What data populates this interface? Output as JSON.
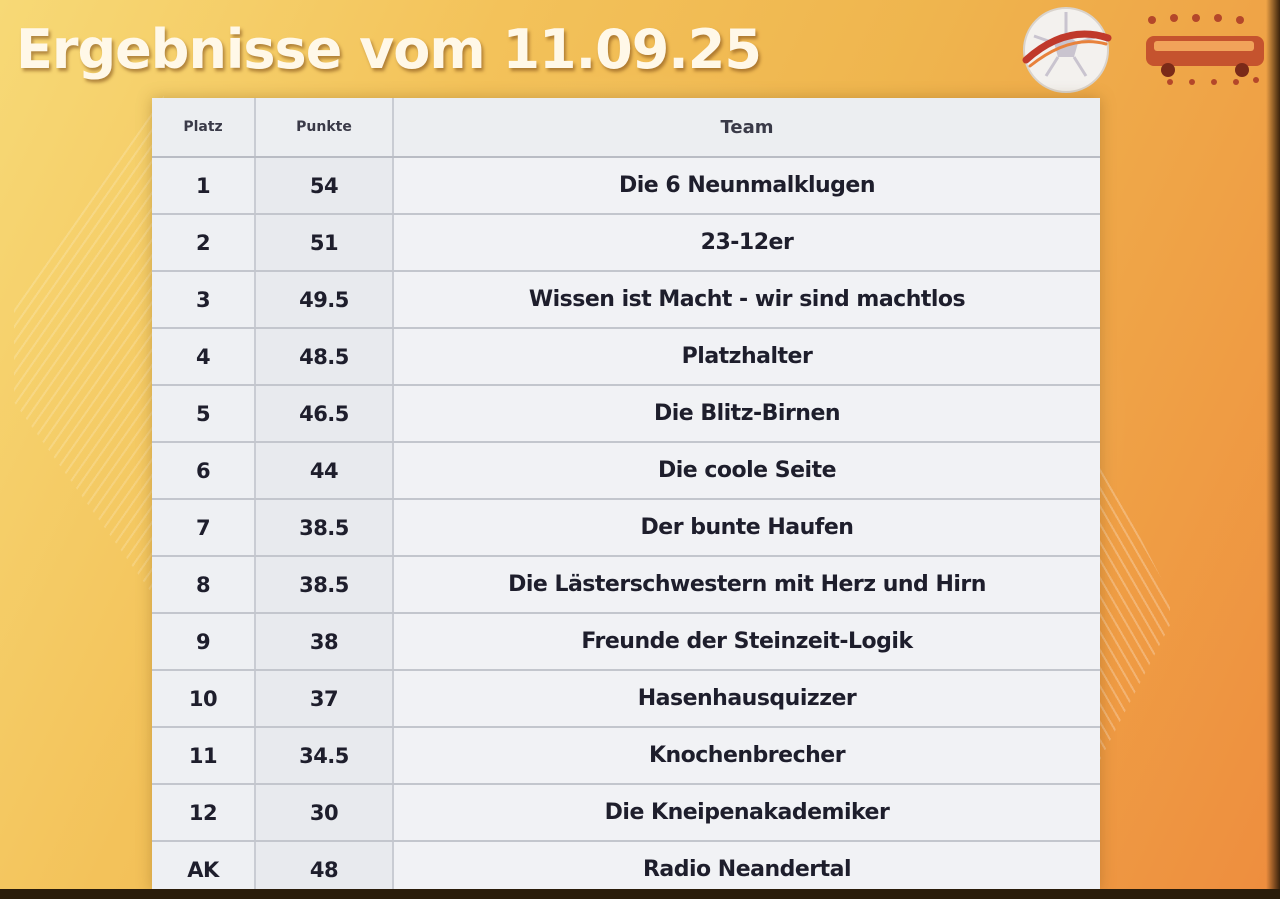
{
  "title": "Ergebnisse vom 11.09.25",
  "table": {
    "headers": {
      "platz": "Platz",
      "punkte": "Punkte",
      "team": "Team"
    },
    "rows": [
      {
        "platz": "1",
        "punkte": "54",
        "team": "Die 6 Neunmalklugen"
      },
      {
        "platz": "2",
        "punkte": "51",
        "team": "23-12er"
      },
      {
        "platz": "3",
        "punkte": "49.5",
        "team": "Wissen ist Macht - wir sind machtlos"
      },
      {
        "platz": "4",
        "punkte": "48.5",
        "team": "Platzhalter"
      },
      {
        "platz": "5",
        "punkte": "46.5",
        "team": "Die Blitz-Birnen"
      },
      {
        "platz": "6",
        "punkte": "44",
        "team": "Die coole Seite"
      },
      {
        "platz": "7",
        "punkte": "38.5",
        "team": "Der bunte Haufen"
      },
      {
        "platz": "8",
        "punkte": "38.5",
        "team": "Die Lästerschwestern mit Herz und Hirn"
      },
      {
        "platz": "9",
        "punkte": "38",
        "team": "Freunde der Steinzeit-Logik"
      },
      {
        "platz": "10",
        "punkte": "37",
        "team": "Hasenhausquizzer"
      },
      {
        "platz": "11",
        "punkte": "34.5",
        "team": "Knochenbrecher"
      },
      {
        "platz": "12",
        "punkte": "30",
        "team": "Die Kneipenakademiker"
      },
      {
        "platz": "AK",
        "punkte": "48",
        "team": "Radio Neandertal"
      }
    ]
  },
  "colors": {
    "background_start": "#f7d976",
    "background_end": "#ee8d3e",
    "title_color": "#fff8e8",
    "table_background": "#f4f5f7",
    "text_color": "#1e1e2c"
  },
  "icons": {
    "quiz_logo": "soccer-ball-logo-icon",
    "bus_logo": "bus-logo-icon"
  }
}
